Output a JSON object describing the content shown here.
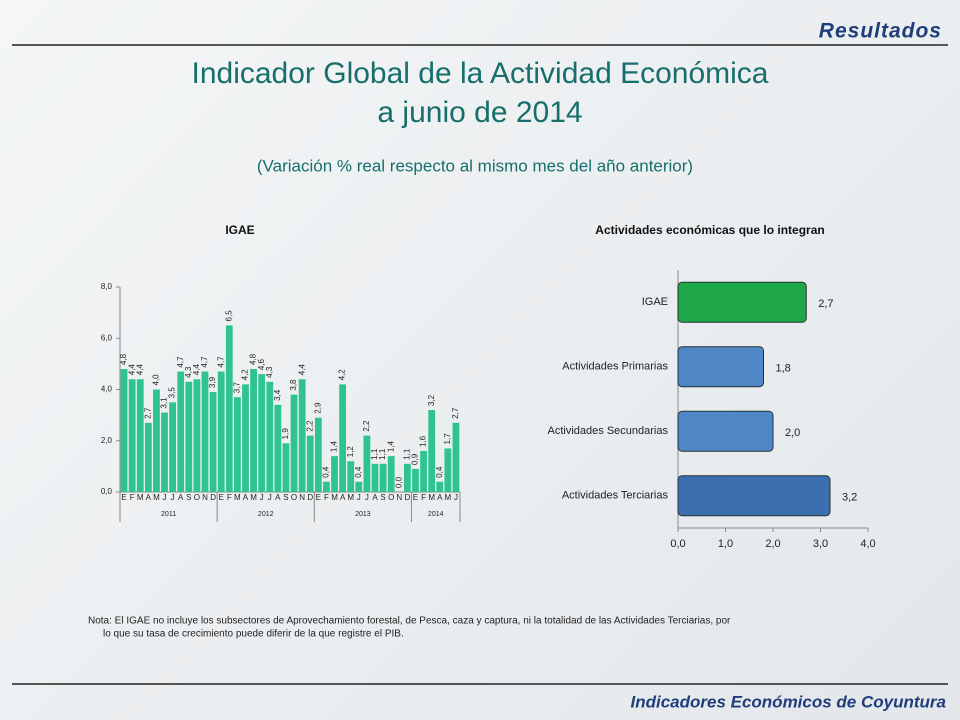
{
  "header": "Resultados",
  "title_line1": "Indicador Global de la Actividad Económica",
  "title_line2": "a junio de 2014",
  "subtitle": "(Variación % real respecto al mismo mes del año anterior)",
  "note_line1": "Nota: El IGAE no incluye los subsectores de Aprovechamiento forestal, de Pesca, caza y captura, ni la totalidad de las Actividades Terciarias, por",
  "note_line2": "lo que su tasa de crecimiento puede diferir de la que registre el PIB.",
  "footer": "Indicadores Económicos de Coyuntura",
  "chart_data": [
    {
      "type": "bar",
      "title": "IGAE",
      "color": "#2fc48f",
      "categories": [
        "E",
        "F",
        "M",
        "A",
        "M",
        "J",
        "J",
        "A",
        "S",
        "O",
        "N",
        "D",
        "E",
        "F",
        "M",
        "A",
        "M",
        "J",
        "J",
        "A",
        "S",
        "O",
        "N",
        "D",
        "E",
        "F",
        "M",
        "A",
        "M",
        "J",
        "J",
        "A",
        "S",
        "O",
        "N",
        "D",
        "E",
        "F",
        "M",
        "A",
        "M",
        "J"
      ],
      "years": [
        "2011",
        "2012",
        "2013",
        "2014"
      ],
      "values": [
        4.8,
        4.4,
        4.4,
        2.7,
        4.0,
        3.1,
        3.5,
        4.7,
        4.3,
        4.4,
        4.7,
        3.9,
        4.7,
        6.5,
        3.7,
        4.2,
        4.8,
        4.6,
        4.3,
        3.4,
        1.9,
        3.8,
        4.4,
        2.2,
        2.9,
        0.4,
        1.4,
        4.2,
        1.2,
        0.4,
        2.2,
        1.1,
        1.1,
        1.4,
        0.0,
        1.1,
        0.9,
        1.6,
        3.2,
        0.4,
        1.7,
        2.7
      ],
      "value_labels": [
        "4,8",
        "4,4",
        "4,4",
        "2,7",
        "4,0",
        "3,1",
        "3,5",
        "4,7",
        "4,3",
        "4,4",
        "4,7",
        "3,9",
        "4,7",
        "6,5",
        "3,7",
        "4,2",
        "4,8",
        "4,6",
        "4,3",
        "3,4",
        "1,9",
        "3,8",
        "4,4",
        "2,2",
        "2,9",
        "0,4",
        "1,4",
        "4,2",
        "1,2",
        "0,4",
        "2,2",
        "1,1",
        "1,1",
        "1,4",
        "0,0",
        "1,1",
        "0,9",
        "1,6",
        "3,2",
        "0,4",
        "1,7",
        "2,7"
      ],
      "ylim": [
        0,
        8
      ],
      "yticks": [
        {
          "value": 0,
          "label": "0,0"
        },
        {
          "value": 2,
          "label": "2,0"
        },
        {
          "value": 4,
          "label": "4,0"
        },
        {
          "value": 6,
          "label": "6,0"
        },
        {
          "value": 8,
          "label": "8,0"
        }
      ]
    },
    {
      "type": "barh",
      "title": "Actividades económicas que lo integran",
      "categories": [
        "IGAE",
        "Actividades Primarias",
        "Actividades Secundarias",
        "Actividades Terciarias"
      ],
      "values": [
        2.7,
        1.8,
        2.0,
        3.2
      ],
      "value_labels": [
        "2,7",
        "1,8",
        "2,0",
        "3,2"
      ],
      "colors": [
        "#1fa84a",
        "#4f86c6",
        "#4f86c6",
        "#3d6fb0"
      ],
      "xlim": [
        0,
        4
      ],
      "xticks": [
        {
          "value": 0,
          "label": "0,0"
        },
        {
          "value": 1,
          "label": "1,0"
        },
        {
          "value": 2,
          "label": "2,0"
        },
        {
          "value": 3,
          "label": "3,0"
        },
        {
          "value": 4,
          "label": "4,0"
        }
      ]
    }
  ]
}
